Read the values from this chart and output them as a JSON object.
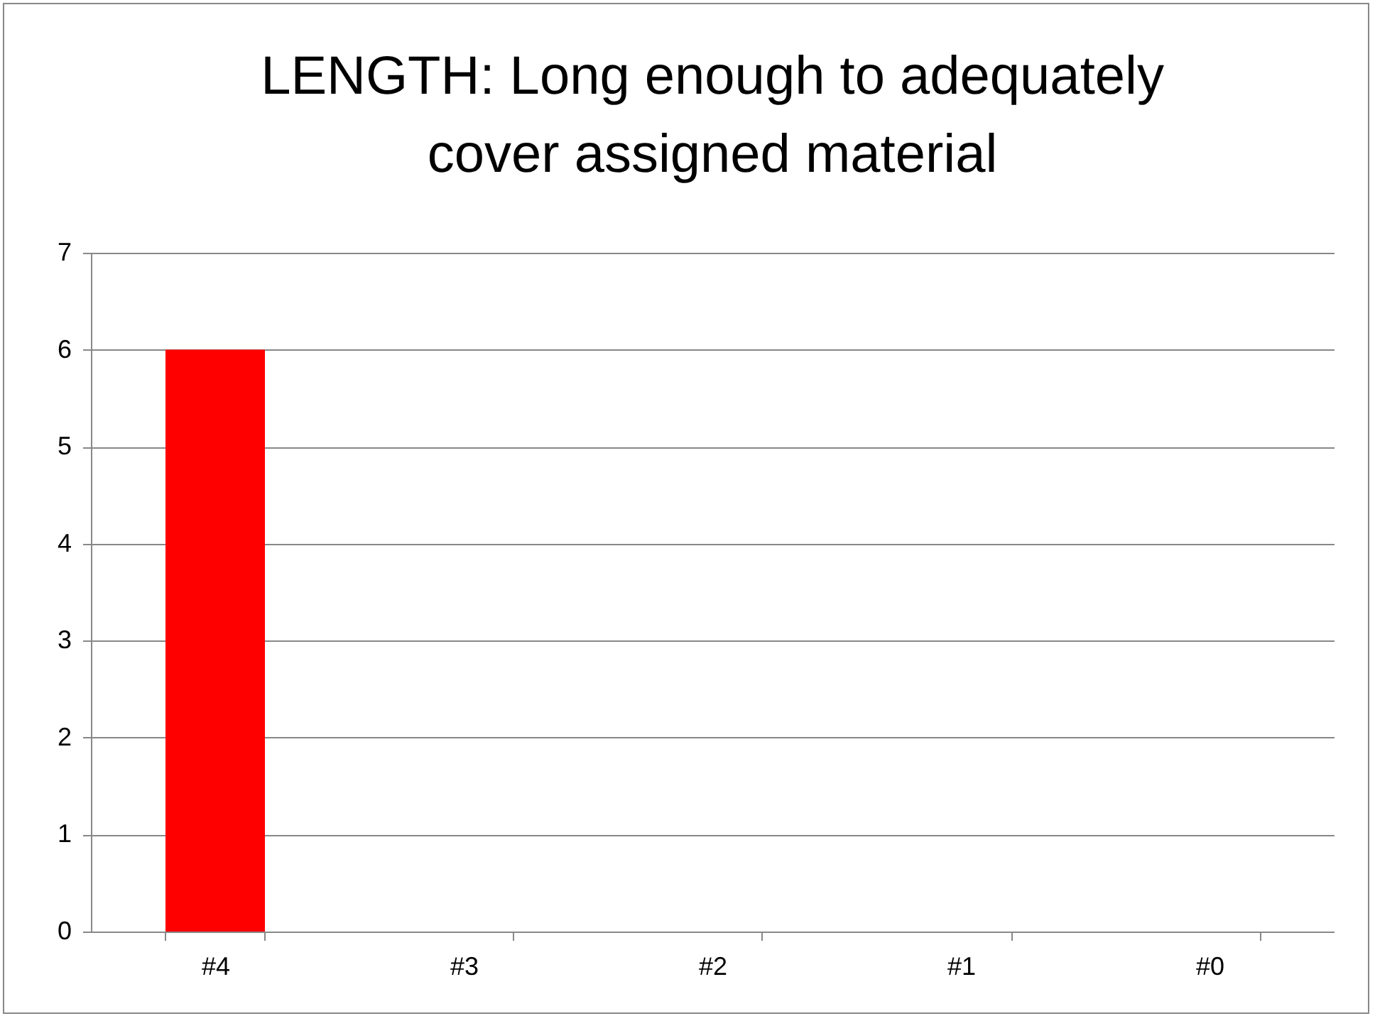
{
  "chart_data": {
    "type": "bar",
    "title": "LENGTH: Long enough to adequately cover assigned material",
    "categories": [
      "#4",
      "#3",
      "#2",
      "#1",
      "#0"
    ],
    "values": [
      6,
      0,
      0,
      0,
      0
    ],
    "color": "#ff0000",
    "ylim": [
      0,
      7
    ],
    "yticks": [
      0,
      1,
      2,
      3,
      4,
      5,
      6,
      7
    ],
    "grid": "y"
  }
}
